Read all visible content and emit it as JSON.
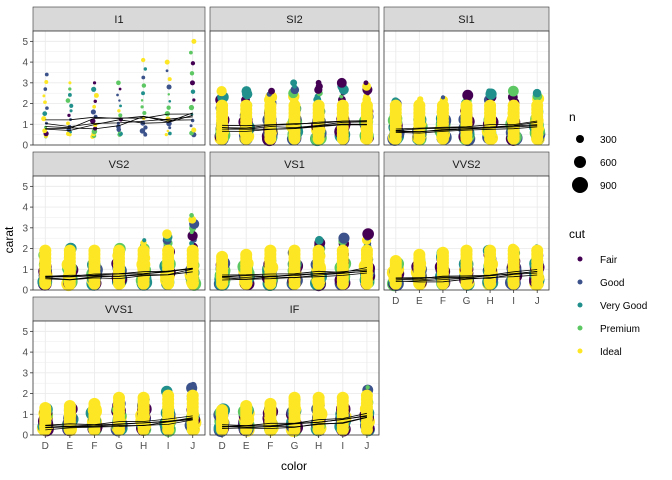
{
  "chart_data": {
    "type": "scatter",
    "facets": [
      "I1",
      "SI2",
      "SI1",
      "VS2",
      "VS1",
      "VVS2",
      "VVS1",
      "IF"
    ],
    "x_categories": [
      "D",
      "E",
      "F",
      "G",
      "H",
      "I",
      "J"
    ],
    "xlabel": "color",
    "ylabel": "carat",
    "ylim": [
      0,
      5.5
    ],
    "y_ticks": [
      0,
      1,
      2,
      3,
      4,
      5
    ],
    "grid": true,
    "legend_position": "right",
    "size_legend": {
      "title": "n",
      "entries": [
        "300",
        "600",
        "900"
      ],
      "values": [
        300,
        600,
        900
      ]
    },
    "color_legend": {
      "title": "cut",
      "series": [
        {
          "name": "Fair",
          "color": "#440154"
        },
        {
          "name": "Good",
          "color": "#3B528B"
        },
        {
          "name": "Very Good",
          "color": "#21908C"
        },
        {
          "name": "Premium",
          "color": "#5DC863"
        },
        {
          "name": "Ideal",
          "color": "#FDE725"
        }
      ]
    },
    "carat_range_by_facet_and_color": {
      "I1": {
        "min": [
          0.4,
          0.5,
          0.4,
          0.5,
          0.5,
          0.5,
          0.5
        ],
        "max": [
          3.4,
          3.0,
          3.0,
          3.0,
          4.1,
          4.0,
          5.0
        ]
      },
      "SI2": {
        "min": [
          0.3,
          0.3,
          0.3,
          0.3,
          0.3,
          0.3,
          0.3
        ],
        "max": [
          2.6,
          2.6,
          2.6,
          3.0,
          3.0,
          3.0,
          3.0
        ]
      },
      "SI1": {
        "min": [
          0.3,
          0.3,
          0.3,
          0.3,
          0.3,
          0.3,
          0.3
        ],
        "max": [
          2.1,
          2.2,
          2.3,
          2.4,
          2.6,
          2.6,
          2.5
        ]
      },
      "VS2": {
        "min": [
          0.3,
          0.3,
          0.3,
          0.3,
          0.3,
          0.3,
          0.3
        ],
        "max": [
          2.0,
          2.0,
          2.0,
          2.1,
          2.4,
          2.7,
          3.6
        ]
      },
      "VS1": {
        "min": [
          0.3,
          0.3,
          0.3,
          0.3,
          0.3,
          0.3,
          0.3
        ],
        "max": [
          1.6,
          1.7,
          1.9,
          1.9,
          2.4,
          2.5,
          2.7
        ]
      },
      "VVS2": {
        "min": [
          0.3,
          0.3,
          0.3,
          0.3,
          0.3,
          0.3,
          0.3
        ],
        "max": [
          1.4,
          1.7,
          1.8,
          1.9,
          1.9,
          2.0,
          2.1
        ]
      },
      "VVS1": {
        "min": [
          0.25,
          0.25,
          0.25,
          0.25,
          0.25,
          0.25,
          0.25
        ],
        "max": [
          1.3,
          1.4,
          1.5,
          1.8,
          1.8,
          2.1,
          2.4
        ]
      },
      "IF": {
        "min": [
          0.25,
          0.25,
          0.25,
          0.25,
          0.25,
          0.25,
          0.25
        ],
        "max": [
          1.2,
          1.4,
          1.5,
          1.8,
          1.8,
          1.8,
          2.3
        ]
      }
    },
    "mean_carat_by_facet_and_color": {
      "I1": [
        1.0,
        0.95,
        1.0,
        1.1,
        1.2,
        1.2,
        1.3
      ],
      "SI2": [
        0.8,
        0.8,
        0.85,
        0.9,
        1.0,
        1.05,
        1.1
      ],
      "SI1": [
        0.7,
        0.7,
        0.75,
        0.8,
        0.85,
        0.9,
        1.0
      ],
      "VS2": [
        0.6,
        0.6,
        0.65,
        0.7,
        0.75,
        0.85,
        1.0
      ],
      "VS1": [
        0.6,
        0.6,
        0.65,
        0.7,
        0.75,
        0.8,
        0.95
      ],
      "VVS2": [
        0.5,
        0.5,
        0.55,
        0.6,
        0.65,
        0.75,
        0.85
      ],
      "VVS1": [
        0.4,
        0.4,
        0.45,
        0.5,
        0.55,
        0.65,
        0.8
      ],
      "IF": [
        0.4,
        0.4,
        0.45,
        0.5,
        0.6,
        0.7,
        0.9
      ]
    }
  }
}
